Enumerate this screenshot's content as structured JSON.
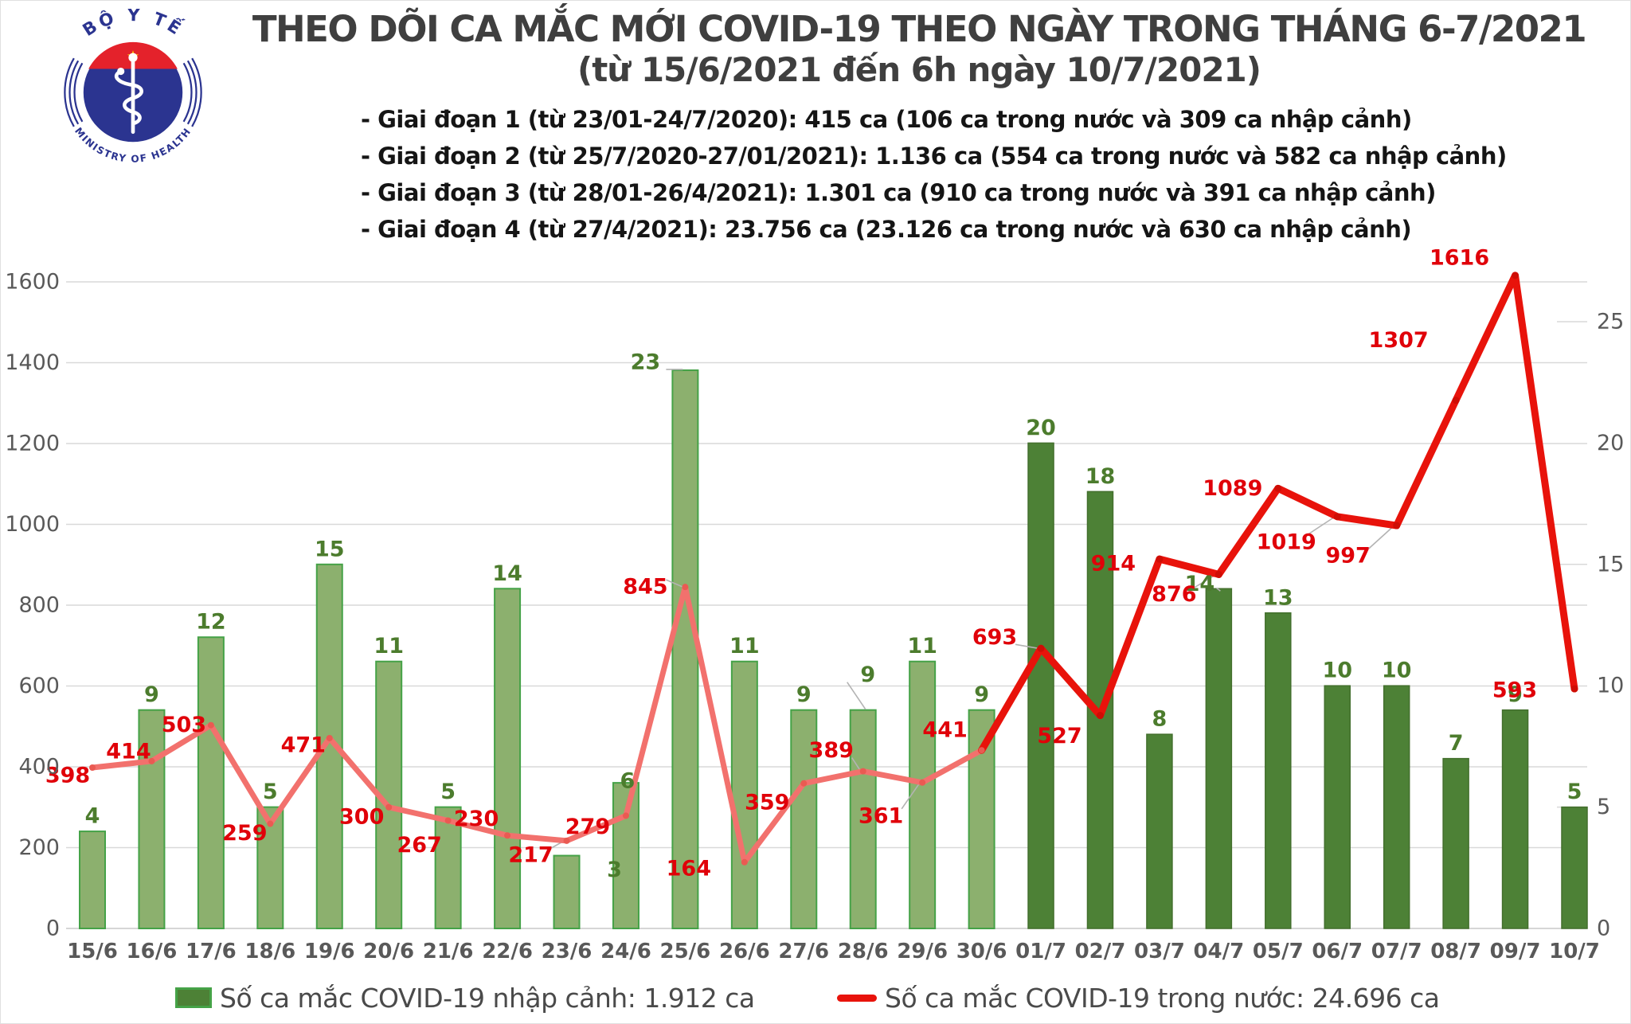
{
  "logo": {
    "top_text": "BỘ Y TẾ",
    "bottom_text": "MINISTRY OF HEALTH"
  },
  "title": {
    "line1": "THEO DÕI CA MẮC MỚI COVID-19 THEO NGÀY TRONG THÁNG 6-7/2021",
    "line2": "(từ 15/6/2021 đến 6h ngày 10/7/2021)"
  },
  "phases": [
    "- Giai đoạn 1 (từ 23/01-24/7/2020): 415 ca (106 ca trong nước và 309 ca nhập cảnh)",
    "- Giai đoạn 2 (từ 25/7/2020-27/01/2021): 1.136 ca (554 ca trong nước và 582 ca nhập cảnh)",
    "- Giai đoạn 3 (từ 28/01-26/4/2021): 1.301 ca (910 ca trong nước và 391 ca nhập cảnh)",
    "- Giai đoạn 4 (từ 27/4/2021): 23.756 ca (23.126 ca trong nước và 630 ca nhập cảnh)"
  ],
  "chart_data": {
    "type": "combo",
    "title": "THEO DÕI CA MẮC MỚI COVID-19 THEO NGÀY TRONG THÁNG 6-7/2021",
    "subtitle": "(từ 15/6/2021 đến 6h ngày 10/7/2021)",
    "categories": [
      "15/6",
      "16/6",
      "17/6",
      "18/6",
      "19/6",
      "20/6",
      "21/6",
      "22/6",
      "23/6",
      "24/6",
      "25/6",
      "26/6",
      "27/6",
      "28/6",
      "29/6",
      "30/6",
      "01/7",
      "02/7",
      "03/7",
      "04/7",
      "05/7",
      "06/7",
      "07/7",
      "08/7",
      "09/7",
      "10/7"
    ],
    "series": [
      {
        "name": "Số ca mắc COVID-19 nhập cảnh",
        "type": "bar",
        "axis": "right",
        "values": [
          4,
          9,
          12,
          5,
          15,
          11,
          5,
          14,
          3,
          6,
          23,
          11,
          9,
          9,
          11,
          9,
          20,
          18,
          8,
          14,
          13,
          10,
          10,
          7,
          9,
          5
        ]
      },
      {
        "name": "Số ca mắc COVID-19 trong nước",
        "type": "line",
        "axis": "left",
        "values": [
          398,
          414,
          503,
          259,
          471,
          300,
          267,
          230,
          217,
          279,
          845,
          164,
          359,
          389,
          361,
          441,
          693,
          527,
          914,
          876,
          1089,
          1019,
          997,
          1307,
          1616,
          593
        ]
      }
    ],
    "left_axis": {
      "min": 0,
      "max": 1600,
      "step": 200,
      "ticks": [
        "0",
        "200",
        "400",
        "600",
        "800",
        "1000",
        "1200",
        "1400",
        "1600"
      ]
    },
    "right_axis": {
      "min": 0,
      "max": 25,
      "step": 5,
      "ticks": [
        "0",
        "5",
        "10",
        "15",
        "20",
        "25"
      ]
    },
    "split_index": 16,
    "grid": true,
    "legend_position": "bottom",
    "colors": {
      "bar_june": "#8cb06e",
      "bar_june_border": "#45a247",
      "bar_july": "#4d8136",
      "bar_july_border": "#436f2d",
      "line_june": "#f2716d",
      "line_july": "#e8130b",
      "dot_june": "#ea5a52",
      "dot_july": "#cf0d05",
      "label_red": "#e00009",
      "label_green": "#4c7c2d",
      "axis_text": "#595959",
      "grid": "#d9d9d9",
      "leader": "#b3b3b3",
      "logo_blue": "#2b3490",
      "logo_red": "#e4222b",
      "logo_star": "#ffd400"
    }
  },
  "legend": {
    "bars_label": "Số ca mắc COVID-19 nhập cảnh: 1.912 ca",
    "line_label": "Số ca mắc COVID-19 trong nước: 24.696 ca"
  }
}
